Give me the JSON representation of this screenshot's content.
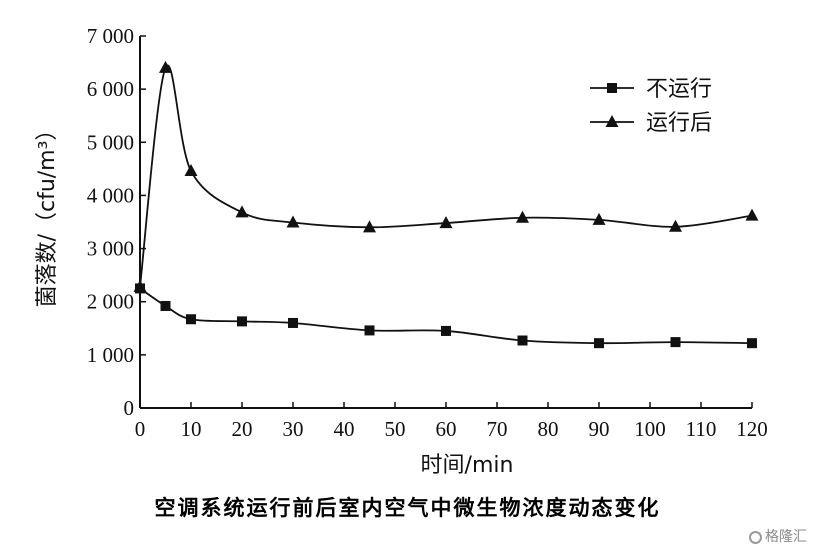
{
  "chart_data": {
    "type": "line",
    "title": "",
    "caption": "空调系统运行前后室内空气中微生物浓度动态变化",
    "xlabel": "时间/min",
    "ylabel": "菌落数/（cfu/m³）",
    "xlim": [
      0,
      120
    ],
    "ylim": [
      0,
      7000
    ],
    "x_ticks": [
      0,
      10,
      20,
      30,
      40,
      50,
      60,
      70,
      80,
      90,
      100,
      110,
      120
    ],
    "y_ticks": [
      0,
      1000,
      2000,
      3000,
      4000,
      5000,
      6000,
      7000
    ],
    "y_tick_labels": [
      "0",
      "1 000",
      "2 000",
      "3 000",
      "4 000",
      "5 000",
      "6 000",
      "7 000"
    ],
    "grid": false,
    "legend_position": "top-right",
    "series": [
      {
        "name": "不运行",
        "marker": "square",
        "x": [
          0,
          5,
          10,
          20,
          30,
          45,
          60,
          75,
          90,
          105,
          120
        ],
        "values": [
          2250,
          1920,
          1670,
          1630,
          1600,
          1460,
          1450,
          1270,
          1220,
          1240,
          1220
        ]
      },
      {
        "name": "运行后",
        "marker": "triangle",
        "x": [
          0,
          5,
          10,
          20,
          30,
          45,
          60,
          75,
          90,
          105,
          120
        ],
        "values": [
          2280,
          6400,
          4460,
          3680,
          3490,
          3400,
          3480,
          3580,
          3540,
          3410,
          3620
        ]
      }
    ]
  },
  "watermark": {
    "text": "格隆汇",
    "icon": "gelonghui-logo-icon"
  }
}
